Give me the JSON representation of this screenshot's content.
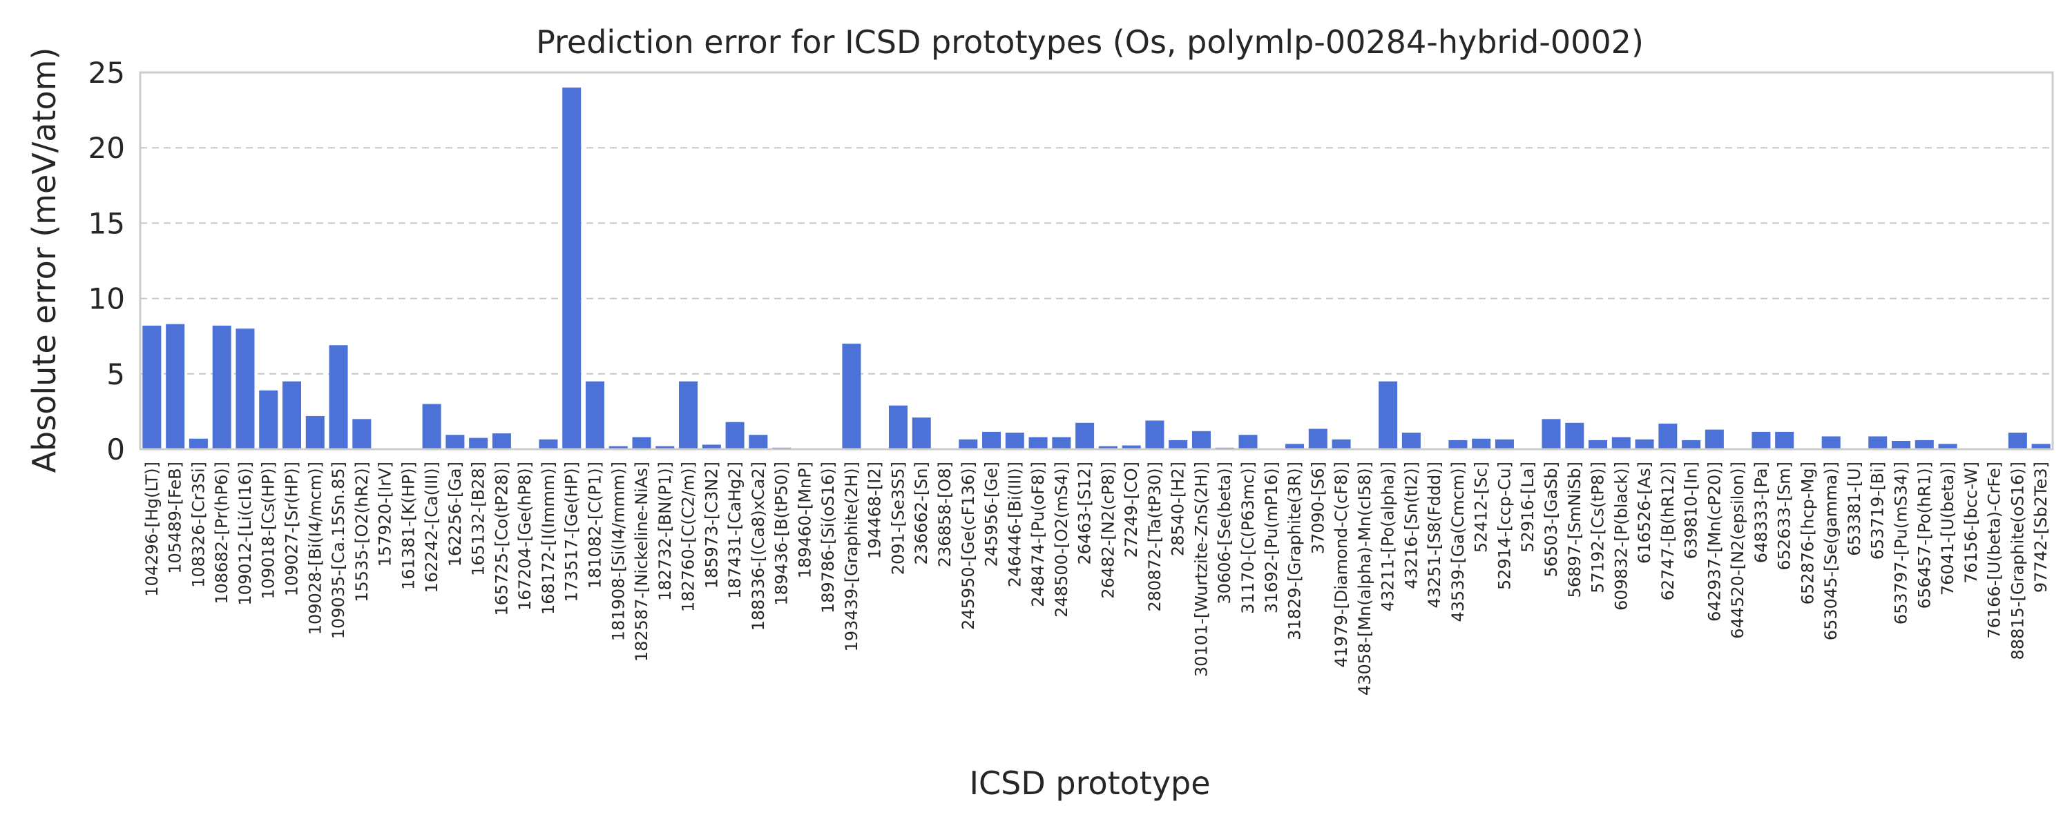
{
  "chart_data": {
    "type": "bar",
    "title": "Prediction error for ICSD prototypes (Os, polymlp-00284-hybrid-0002)",
    "xlabel": "ICSD prototype",
    "ylabel": "Absolute error (meV/atom)",
    "ylim": [
      0,
      25
    ],
    "yticks": [
      "0",
      "5",
      "10",
      "15",
      "20",
      "25"
    ],
    "grid": "y-dashed",
    "bar_color": "#4c72d8",
    "categories": [
      "104296-[Hg(LT)]",
      "105489-[FeB]",
      "108326-[Cr3Si]",
      "108682-[Pr(hP6)]",
      "109012-[Li(cI16)]",
      "109018-[Cs(HP)]",
      "109027-[Sr(HP)]",
      "109028-[Bi(I4/mcm)]",
      "109035-[Ca.15Sn.85]",
      "15535-[O2(hR2)]",
      "157920-[IrV]",
      "161381-[K(HP)]",
      "162242-[Ca(III)]",
      "162256-[Ga]",
      "165132-[B28]",
      "165725-[Co(tP28)]",
      "167204-[Ge(hP8)]",
      "168172-[I(Immm)]",
      "173517-[Ge(HP)]",
      "181082-[C(P1)]",
      "181908-[Si(I4/mmm)]",
      "182587-[Nickeline-NiAs]",
      "182732-[BN(P1)]",
      "182760-[C(C2/m)]",
      "185973-[C3N2]",
      "187431-[CaHg2]",
      "188336-[(Ca8)xCa2]",
      "189436-[B(tP50)]",
      "189460-[MnP]",
      "189786-[Si(oS16)]",
      "193439-[Graphite(2H)]",
      "194468-[I2]",
      "2091-[Se3S5]",
      "236662-[Sn]",
      "236858-[O8]",
      "245950-[Ge(cF136)]",
      "245956-[Ge]",
      "246446-[Bi(III)]",
      "248474-[Pu(oF8)]",
      "248500-[O2(mS4)]",
      "26463-[S12]",
      "26482-[N2(cP8)]",
      "27249-[CO]",
      "280872-[Ta(tP30)]",
      "28540-[H2]",
      "30101-[Wurtzite-ZnS(2H)]",
      "30606-[Se(beta)]",
      "31170-[C(P63mc)]",
      "31692-[Pu(mP16)]",
      "31829-[Graphite(3R)]",
      "37090-[S6]",
      "41979-[Diamond-C(cF8)]",
      "43058-[Mn(alpha)-Mn(cI58)]",
      "43211-[Po(alpha)]",
      "43216-[Sn(tI2)]",
      "43251-[S8(Fddd)]",
      "43539-[Ga(Cmcm)]",
      "52412-[Sc]",
      "52914-[ccp-Cu]",
      "52916-[La]",
      "56503-[GaSb]",
      "56897-[SmNiSb]",
      "57192-[Cs(tP8)]",
      "609832-[P(black)]",
      "616526-[As]",
      "62747-[B(hR12)]",
      "639810-[In]",
      "642937-[Mn(cP20)]",
      "644520-[N2(epsilon)]",
      "648333-[Pa]",
      "652633-[Sm]",
      "652876-[hcp-Mg]",
      "653045-[Se(gamma)]",
      "653381-[U]",
      "653719-[Bi]",
      "653797-[Pu(mS34)]",
      "656457-[Po(hR1)]",
      "76041-[U(beta)]",
      "76156-[bcc-W]",
      "76166-[U(beta)-CrFe]",
      "88815-[Graphite(oS16)]",
      "97742-[Sb2Te3]"
    ],
    "values": [
      8.2,
      8.3,
      0.7,
      8.2,
      8.0,
      3.9,
      4.5,
      2.2,
      6.9,
      2.0,
      0.0,
      0.0,
      3.0,
      0.95,
      0.75,
      1.05,
      0.0,
      0.65,
      24.0,
      4.5,
      0.2,
      0.8,
      0.2,
      4.5,
      0.3,
      1.8,
      0.95,
      0.1,
      0.0,
      0.0,
      7.0,
      0.0,
      2.9,
      2.1,
      0.05,
      0.65,
      1.15,
      1.1,
      0.8,
      0.8,
      1.75,
      0.2,
      0.25,
      1.9,
      0.6,
      1.2,
      0.1,
      0.95,
      0.05,
      0.35,
      1.35,
      0.65,
      0.05,
      4.5,
      1.1,
      0.05,
      0.6,
      0.7,
      0.65,
      0.0,
      2.0,
      1.75,
      0.6,
      0.8,
      0.65,
      1.7,
      0.6,
      1.3,
      0.0,
      1.15,
      1.15,
      0.05,
      0.85,
      0.05,
      0.85,
      0.55,
      0.6,
      0.35,
      0.0,
      0.0,
      1.1,
      0.35
    ]
  }
}
